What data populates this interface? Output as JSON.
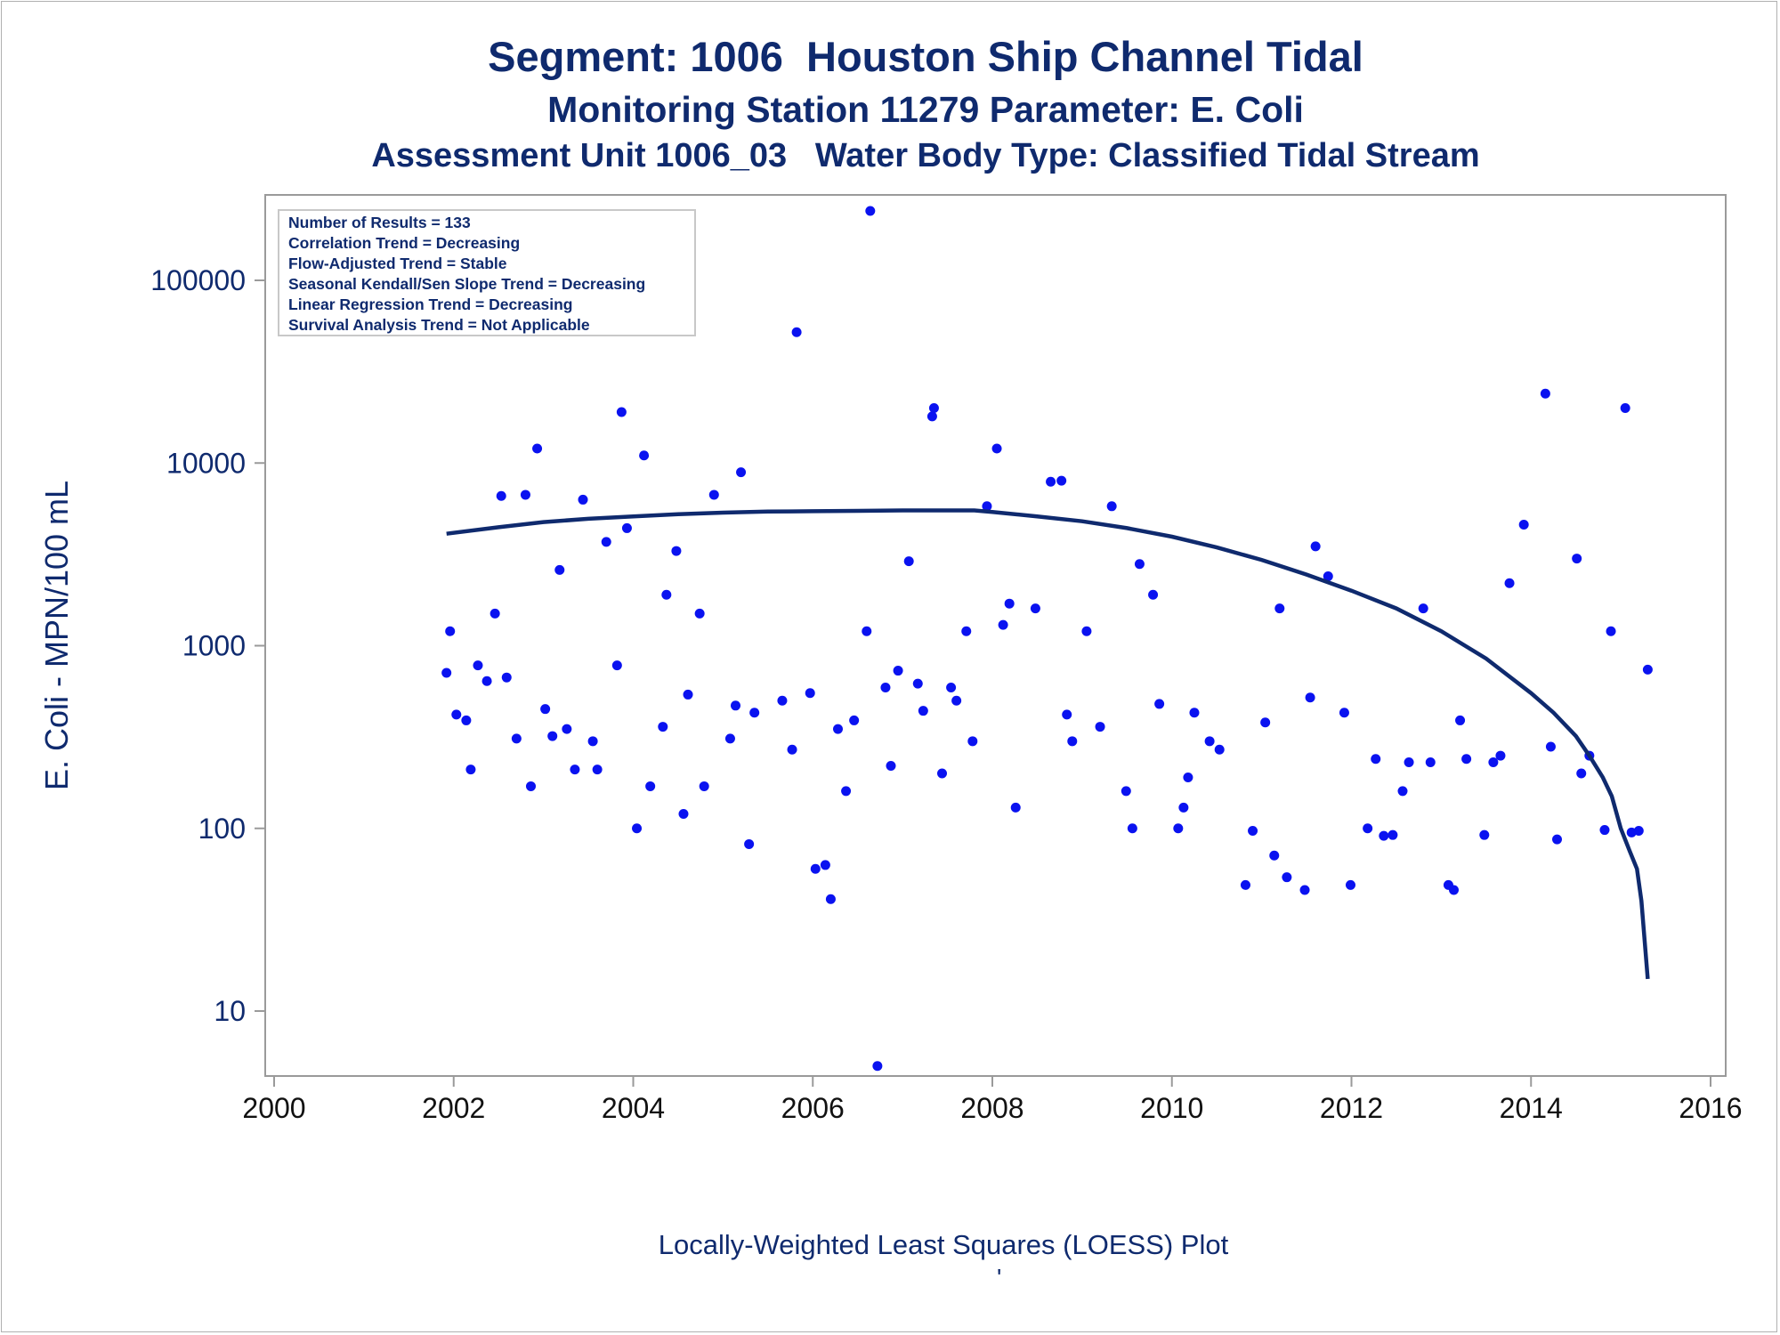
{
  "title": "Segment: 1006  Houston Ship Channel Tidal",
  "subtitle": "Monitoring Station 11279 Parameter: E. Coli",
  "subtitle2": "Assessment Unit 1006_03   Water Body Type: Classified Tidal Stream",
  "footnote": "Locally-Weighted Least Squares (LOESS) Plot",
  "footnote_mark": "'",
  "colors": {
    "text": "#0f2a6e",
    "points": "#0a12f0",
    "curve": "#0f2a6e",
    "axis": "#9a9a9a"
  },
  "chart_data": {
    "type": "scatter",
    "title": "Segment: 1006  Houston Ship Channel Tidal",
    "xlabel": "",
    "ylabel": "E. Coli - MPN/100 mL",
    "xlim": [
      2000,
      2016
    ],
    "ylim": [
      4.3,
      280000
    ],
    "yscale": "log",
    "x_ticks": [
      2000,
      2002,
      2004,
      2006,
      2008,
      2010,
      2012,
      2014,
      2016
    ],
    "y_ticks": [
      10,
      100,
      1000,
      10000,
      100000
    ],
    "legend_box": {
      "placement": "top-left",
      "lines": [
        "Number of Results = 133",
        "Correlation Trend = Decreasing",
        "Flow-Adjusted Trend = Stable",
        "Seasonal Kendall/Sen Slope Trend = Decreasing",
        "Linear Regression Trend = Decreasing",
        "Survival Analysis Trend = Not Applicable"
      ]
    },
    "series": [
      {
        "type": "scatter",
        "points": [
          [
            2001.92,
            710
          ],
          [
            2001.96,
            1200
          ],
          [
            2002.03,
            420
          ],
          [
            2002.14,
            390
          ],
          [
            2002.19,
            210
          ],
          [
            2002.27,
            780
          ],
          [
            2002.37,
            640
          ],
          [
            2002.46,
            1500
          ],
          [
            2002.53,
            6600
          ],
          [
            2002.59,
            670
          ],
          [
            2002.7,
            310
          ],
          [
            2002.8,
            6700
          ],
          [
            2002.86,
            170
          ],
          [
            2002.93,
            12000
          ],
          [
            2003.02,
            450
          ],
          [
            2003.1,
            320
          ],
          [
            2003.18,
            2600
          ],
          [
            2003.26,
            350
          ],
          [
            2003.35,
            210
          ],
          [
            2003.44,
            6300
          ],
          [
            2003.55,
            300
          ],
          [
            2003.6,
            210
          ],
          [
            2003.7,
            3700
          ],
          [
            2003.82,
            780
          ],
          [
            2003.87,
            19000
          ],
          [
            2003.93,
            4400
          ],
          [
            2004.04,
            100
          ],
          [
            2004.12,
            11000
          ],
          [
            2004.19,
            170
          ],
          [
            2004.33,
            360
          ],
          [
            2004.37,
            1900
          ],
          [
            2004.48,
            3300
          ],
          [
            2004.56,
            120
          ],
          [
            2004.61,
            540
          ],
          [
            2004.74,
            1500
          ],
          [
            2004.79,
            170
          ],
          [
            2004.9,
            6700
          ],
          [
            2005.08,
            310
          ],
          [
            2005.14,
            470
          ],
          [
            2005.2,
            8900
          ],
          [
            2005.29,
            82
          ],
          [
            2005.35,
            430
          ],
          [
            2005.66,
            500
          ],
          [
            2005.77,
            270
          ],
          [
            2005.82,
            52000
          ],
          [
            2005.97,
            550
          ],
          [
            2006.03,
            60
          ],
          [
            2006.14,
            63
          ],
          [
            2006.2,
            41
          ],
          [
            2006.28,
            350
          ],
          [
            2006.37,
            160
          ],
          [
            2006.46,
            390
          ],
          [
            2006.6,
            1200
          ],
          [
            2006.64,
            240000
          ],
          [
            2006.72,
            5
          ],
          [
            2006.81,
            590
          ],
          [
            2006.87,
            220
          ],
          [
            2006.95,
            730
          ],
          [
            2007.07,
            2900
          ],
          [
            2007.17,
            620
          ],
          [
            2007.23,
            440
          ],
          [
            2007.33,
            18000
          ],
          [
            2007.35,
            20000
          ],
          [
            2007.44,
            200
          ],
          [
            2007.54,
            590
          ],
          [
            2007.6,
            500
          ],
          [
            2007.71,
            1200
          ],
          [
            2007.78,
            300
          ],
          [
            2007.94,
            5800
          ],
          [
            2008.05,
            12000
          ],
          [
            2008.12,
            1300
          ],
          [
            2008.19,
            1700
          ],
          [
            2008.26,
            130
          ],
          [
            2008.48,
            1600
          ],
          [
            2008.65,
            7900
          ],
          [
            2008.77,
            8000
          ],
          [
            2008.83,
            420
          ],
          [
            2008.89,
            300
          ],
          [
            2009.05,
            1200
          ],
          [
            2009.2,
            360
          ],
          [
            2009.33,
            5800
          ],
          [
            2009.49,
            160
          ],
          [
            2009.56,
            100
          ],
          [
            2009.64,
            2800
          ],
          [
            2009.79,
            1900
          ],
          [
            2009.86,
            480
          ],
          [
            2010.07,
            100
          ],
          [
            2010.13,
            130
          ],
          [
            2010.18,
            190
          ],
          [
            2010.25,
            430
          ],
          [
            2010.42,
            300
          ],
          [
            2010.53,
            270
          ],
          [
            2010.82,
            49
          ],
          [
            2010.9,
            97
          ],
          [
            2011.04,
            380
          ],
          [
            2011.14,
            71
          ],
          [
            2011.2,
            1600
          ],
          [
            2011.28,
            54
          ],
          [
            2011.48,
            46
          ],
          [
            2011.54,
            520
          ],
          [
            2011.6,
            3500
          ],
          [
            2011.74,
            2400
          ],
          [
            2011.92,
            430
          ],
          [
            2011.99,
            49
          ],
          [
            2012.18,
            100
          ],
          [
            2012.27,
            240
          ],
          [
            2012.36,
            91
          ],
          [
            2012.46,
            92
          ],
          [
            2012.57,
            160
          ],
          [
            2012.64,
            230
          ],
          [
            2012.8,
            1600
          ],
          [
            2012.88,
            230
          ],
          [
            2013.08,
            49
          ],
          [
            2013.14,
            46
          ],
          [
            2013.21,
            390
          ],
          [
            2013.28,
            240
          ],
          [
            2013.48,
            92
          ],
          [
            2013.58,
            230
          ],
          [
            2013.66,
            250
          ],
          [
            2013.76,
            2200
          ],
          [
            2013.92,
            4600
          ],
          [
            2014.16,
            24000
          ],
          [
            2014.22,
            280
          ],
          [
            2014.29,
            87
          ],
          [
            2014.51,
            3000
          ],
          [
            2014.56,
            200
          ],
          [
            2014.65,
            250
          ],
          [
            2014.82,
            98
          ],
          [
            2014.89,
            1200
          ],
          [
            2015.05,
            20000
          ],
          [
            2015.12,
            95
          ],
          [
            2015.2,
            97
          ],
          [
            2015.3,
            740
          ]
        ]
      },
      {
        "type": "line",
        "x": [
          2001.92,
          2002.5,
          2003.0,
          2003.5,
          2004.0,
          2004.5,
          2005.0,
          2005.5,
          2006.0,
          2006.5,
          2007.0,
          2007.5,
          2007.8,
          2008.0,
          2008.5,
          2009.0,
          2009.5,
          2010.0,
          2010.5,
          2011.0,
          2011.5,
          2012.0,
          2012.5,
          2013.0,
          2013.5,
          2014.0,
          2014.25,
          2014.5,
          2014.65,
          2014.8,
          2014.9,
          2015.0,
          2015.1,
          2015.18,
          2015.23,
          2015.3
        ],
        "values": [
          4100,
          4450,
          4750,
          4950,
          5100,
          5250,
          5350,
          5420,
          5450,
          5470,
          5500,
          5500,
          5500,
          5400,
          5100,
          4800,
          4400,
          3950,
          3450,
          2950,
          2450,
          2000,
          1600,
          1200,
          850,
          550,
          430,
          320,
          250,
          190,
          150,
          100,
          75,
          60,
          40,
          15
        ]
      }
    ]
  }
}
